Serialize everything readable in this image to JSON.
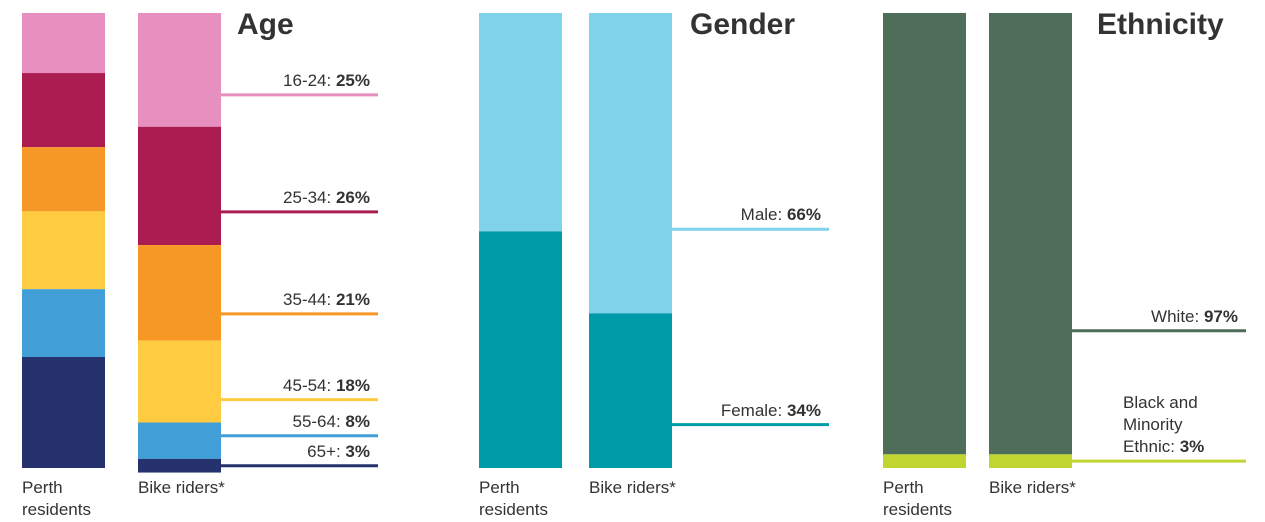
{
  "chart_data": [
    {
      "type": "stacked_bar",
      "title": "Age",
      "categories": [
        "Perth residents",
        "Bike riders*"
      ],
      "ylim": [
        0,
        100
      ],
      "series": [
        {
          "name": "16-24:",
          "color": "#e78fbf",
          "values": [
            13.2,
            25
          ],
          "value_labels": [
            null,
            "25%"
          ]
        },
        {
          "name": "25-34:",
          "color": "#ab1c51",
          "values": [
            16.3,
            26
          ],
          "value_labels": [
            null,
            "26%"
          ]
        },
        {
          "name": "35-44:",
          "color": "#f59826",
          "values": [
            14.1,
            21
          ],
          "value_labels": [
            null,
            "21%"
          ]
        },
        {
          "name": "45-54:",
          "color": "#fecb41",
          "values": [
            17.1,
            18
          ],
          "value_labels": [
            null,
            "18%"
          ]
        },
        {
          "name": "55-64:",
          "color": "#429ed7",
          "values": [
            14.9,
            8
          ],
          "value_labels": [
            null,
            "8%"
          ]
        },
        {
          "name": "65+:",
          "color": "#25326e",
          "values": [
            24.4,
            3
          ],
          "value_labels": [
            null,
            "3%"
          ]
        }
      ]
    },
    {
      "type": "stacked_bar",
      "title": "Gender",
      "categories": [
        "Perth residents",
        "Bike riders*"
      ],
      "ylim": [
        0,
        100
      ],
      "series": [
        {
          "name": "Male:",
          "color": "#81d2eb",
          "values": [
            48,
            66
          ],
          "value_labels": [
            null,
            "66%"
          ]
        },
        {
          "name": "Female:",
          "color": "#009ba8",
          "values": [
            52,
            34
          ],
          "value_labels": [
            null,
            "34%"
          ]
        }
      ]
    },
    {
      "type": "stacked_bar",
      "title": "Ethnicity",
      "categories": [
        "Perth residents",
        "Bike riders*"
      ],
      "ylim": [
        0,
        100
      ],
      "series": [
        {
          "name": "White:",
          "color": "#4e6e5a",
          "values": [
            97,
            97
          ],
          "value_labels": [
            null,
            "97%"
          ]
        },
        {
          "name": "Black and Minority Ethnic:",
          "color": "#c0d530",
          "values": [
            3,
            3
          ],
          "value_labels": [
            null,
            "3%"
          ]
        }
      ]
    }
  ]
}
